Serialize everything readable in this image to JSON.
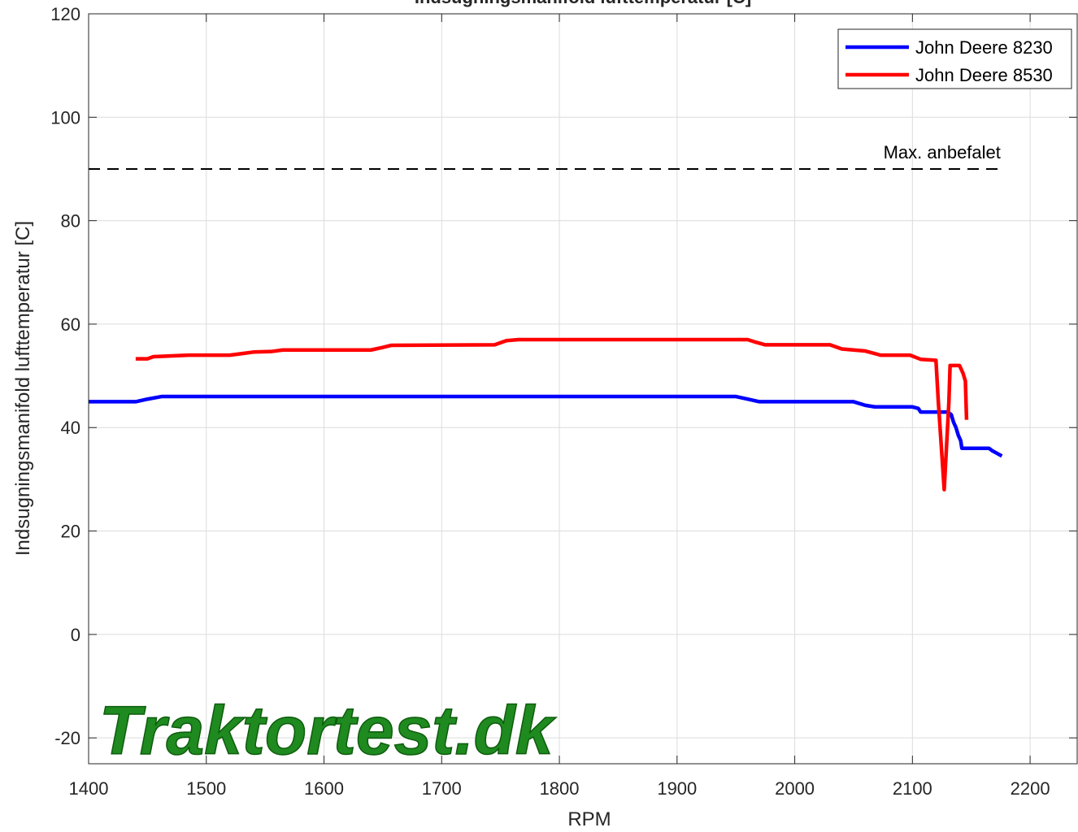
{
  "chart_data": {
    "type": "line",
    "title": "Indsugningsmanifold lufttemperatur [C]",
    "xlabel": "RPM",
    "ylabel": "Indsugningsmanifold lufttemperatur [C]",
    "watermark": "Traktortest.dk",
    "xlim": [
      1400,
      2240
    ],
    "xticks": [
      1400,
      1500,
      1600,
      1700,
      1800,
      1900,
      2000,
      2100,
      2200
    ],
    "ylim": [
      -25,
      120
    ],
    "yticks": [
      -20,
      0,
      20,
      40,
      60,
      80,
      100,
      120
    ],
    "grid": true,
    "legend": "upper right",
    "reference_line": {
      "label": "Max. anbefalet",
      "value": 90,
      "x": [
        1400,
        2175
      ],
      "color": "#000000"
    },
    "series": [
      {
        "name": "John Deere 8230",
        "color": "#0000ff",
        "x": [
          1400,
          1440,
          1450,
          1462,
          1950,
          1960,
          1970,
          2050,
          2060,
          2068,
          2100,
          2105,
          2107,
          2130,
          2133,
          2135,
          2137,
          2139,
          2141,
          2142,
          2165,
          2168,
          2172,
          2176
        ],
        "values": [
          45,
          45,
          45.5,
          46,
          46,
          45.5,
          45,
          45,
          44.3,
          44,
          44,
          43.7,
          43,
          43,
          42.5,
          41,
          40,
          38.5,
          37.5,
          36,
          36,
          35.5,
          35,
          34.5
        ]
      },
      {
        "name": "John Deere 8530",
        "color": "#ff0000",
        "x": [
          1440,
          1450,
          1455,
          1465,
          1485,
          1520,
          1530,
          1540,
          1555,
          1565,
          1640,
          1650,
          1657,
          1745,
          1755,
          1765,
          1960,
          1967,
          1975,
          2030,
          2040,
          2050,
          2060,
          2073,
          2098,
          2107,
          2120,
          2122,
          2127,
          2131,
          2132,
          2140,
          2143,
          2145,
          2146
        ],
        "values": [
          53.3,
          53.3,
          53.7,
          53.8,
          54,
          54,
          54.3,
          54.6,
          54.7,
          55,
          55,
          55.5,
          55.9,
          56,
          56.8,
          57,
          57,
          56.5,
          56,
          56,
          55.2,
          55,
          54.8,
          54,
          54,
          53.2,
          53,
          45,
          28,
          45,
          52,
          52,
          50.5,
          49,
          41.5
        ]
      }
    ]
  }
}
